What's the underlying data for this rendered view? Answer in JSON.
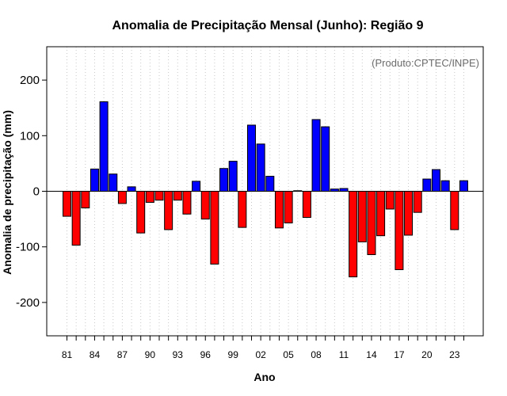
{
  "chart_data": {
    "type": "bar",
    "title": "Anomalia de Precipitação Mensal (Junho): Região 9",
    "xlabel": "Ano",
    "ylabel": "Anomalia de precipitação (mm)",
    "credit": "(Produto:CPTEC/INPE)",
    "ylim": [
      -260,
      260
    ],
    "yticks": [
      -200,
      -100,
      0,
      100,
      200
    ],
    "xtick_labels": [
      "81",
      "84",
      "87",
      "90",
      "93",
      "96",
      "99",
      "02",
      "05",
      "08",
      "11",
      "14",
      "17",
      "20",
      "23"
    ],
    "years": [
      1981,
      1982,
      1983,
      1984,
      1985,
      1986,
      1987,
      1988,
      1989,
      1990,
      1991,
      1992,
      1993,
      1994,
      1995,
      1996,
      1997,
      1998,
      1999,
      2000,
      2001,
      2002,
      2003,
      2004,
      2005,
      2006,
      2007,
      2008,
      2009,
      2010,
      2011,
      2012,
      2013,
      2014,
      2015,
      2016,
      2017,
      2018,
      2019,
      2020,
      2021,
      2022,
      2023,
      2024
    ],
    "values": [
      -45,
      -97,
      -30,
      40,
      161,
      31,
      -22,
      8,
      -75,
      -20,
      -16,
      -69,
      -16,
      -41,
      18,
      -50,
      -131,
      41,
      54,
      -65,
      119,
      85,
      27,
      -66,
      -57,
      1,
      -47,
      129,
      116,
      4,
      5,
      -154,
      -91,
      -114,
      -80,
      -32,
      -141,
      -79,
      -38,
      22,
      39,
      19,
      -69,
      19
    ],
    "colors": {
      "positive": "#0000ff",
      "negative": "#ff0000"
    },
    "grid": true
  }
}
